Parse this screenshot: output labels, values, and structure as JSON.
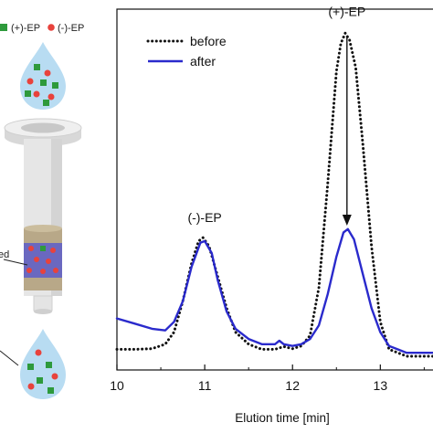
{
  "schematic": {
    "legend": {
      "items": [
        {
          "label": "(+)-EP",
          "color": "#2e9a3c"
        },
        {
          "label": "(-)-EP",
          "color": "#e8423c"
        }
      ]
    },
    "cartridge_label": "ed",
    "colors": {
      "drop": "#b8dcf2",
      "green_particle": "#2e9a3c",
      "red_particle": "#e8423c",
      "resin_band": "#b8a888",
      "resin_core": "#6a68c0"
    }
  },
  "chart_data": {
    "type": "line",
    "xlabel": "Elution time [min]",
    "ylabel": "",
    "xlim": [
      10,
      13.6
    ],
    "ylim": [
      0,
      1.05
    ],
    "x_ticks": [
      10,
      11,
      12,
      13
    ],
    "x_tick_labels": [
      "10",
      "11",
      "12",
      "13"
    ],
    "grid": false,
    "legend_position": "top-left",
    "series": [
      {
        "name": "before",
        "color": "#111111",
        "style": "dotted",
        "points": [
          [
            10.0,
            0.06
          ],
          [
            10.2,
            0.06
          ],
          [
            10.4,
            0.062
          ],
          [
            10.55,
            0.075
          ],
          [
            10.65,
            0.11
          ],
          [
            10.75,
            0.2
          ],
          [
            10.85,
            0.31
          ],
          [
            10.93,
            0.375
          ],
          [
            10.98,
            0.385
          ],
          [
            11.05,
            0.36
          ],
          [
            11.15,
            0.27
          ],
          [
            11.25,
            0.18
          ],
          [
            11.35,
            0.11
          ],
          [
            11.5,
            0.075
          ],
          [
            11.65,
            0.06
          ],
          [
            11.8,
            0.06
          ],
          [
            11.9,
            0.068
          ],
          [
            12.0,
            0.062
          ],
          [
            12.1,
            0.07
          ],
          [
            12.2,
            0.1
          ],
          [
            12.3,
            0.24
          ],
          [
            12.4,
            0.54
          ],
          [
            12.5,
            0.87
          ],
          [
            12.55,
            0.95
          ],
          [
            12.6,
            0.98
          ],
          [
            12.65,
            0.96
          ],
          [
            12.72,
            0.88
          ],
          [
            12.8,
            0.66
          ],
          [
            12.9,
            0.36
          ],
          [
            13.0,
            0.14
          ],
          [
            13.1,
            0.06
          ],
          [
            13.3,
            0.04
          ],
          [
            13.6,
            0.04
          ]
        ]
      },
      {
        "name": "after",
        "color": "#2a2acc",
        "style": "solid",
        "points": [
          [
            10.0,
            0.15
          ],
          [
            10.2,
            0.135
          ],
          [
            10.4,
            0.12
          ],
          [
            10.55,
            0.115
          ],
          [
            10.65,
            0.14
          ],
          [
            10.75,
            0.2
          ],
          [
            10.85,
            0.3
          ],
          [
            10.95,
            0.37
          ],
          [
            11.0,
            0.375
          ],
          [
            11.08,
            0.34
          ],
          [
            11.15,
            0.26
          ],
          [
            11.25,
            0.17
          ],
          [
            11.35,
            0.12
          ],
          [
            11.5,
            0.09
          ],
          [
            11.65,
            0.075
          ],
          [
            11.8,
            0.075
          ],
          [
            11.85,
            0.085
          ],
          [
            11.9,
            0.075
          ],
          [
            12.0,
            0.07
          ],
          [
            12.1,
            0.075
          ],
          [
            12.2,
            0.09
          ],
          [
            12.3,
            0.13
          ],
          [
            12.4,
            0.22
          ],
          [
            12.5,
            0.33
          ],
          [
            12.58,
            0.4
          ],
          [
            12.63,
            0.41
          ],
          [
            12.7,
            0.38
          ],
          [
            12.8,
            0.28
          ],
          [
            12.9,
            0.18
          ],
          [
            13.0,
            0.11
          ],
          [
            13.1,
            0.07
          ],
          [
            13.3,
            0.05
          ],
          [
            13.6,
            0.05
          ]
        ]
      }
    ],
    "legend": [
      {
        "label": "before",
        "style": "dotted",
        "color": "#111111"
      },
      {
        "label": "after",
        "style": "solid",
        "color": "#2a2acc"
      }
    ],
    "annotations": [
      {
        "text": "(-)-EP",
        "x": 11.0,
        "y": 0.43
      },
      {
        "text": "(+)-EP",
        "x": 12.62,
        "y": 1.03
      },
      {
        "type": "arrow",
        "x": 12.62,
        "from_y": 0.97,
        "to_y": 0.42
      }
    ]
  }
}
